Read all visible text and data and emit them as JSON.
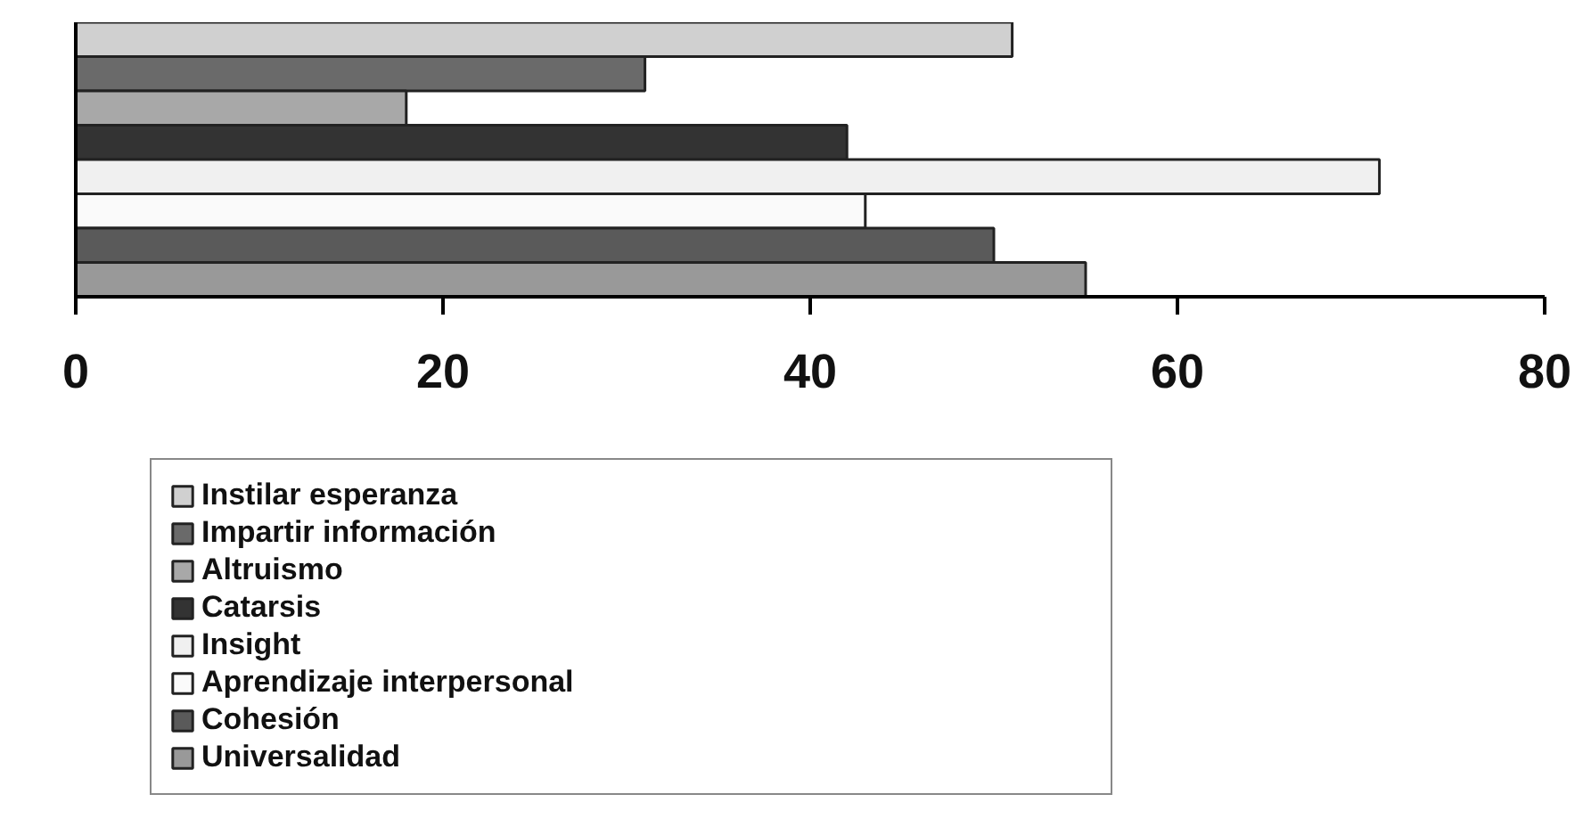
{
  "chart_data": {
    "type": "bar",
    "orientation": "horizontal",
    "categories": [
      null
    ],
    "series": [
      {
        "name": "Instilar esperanza",
        "color": "#d0d0d0",
        "values": [
          51
        ]
      },
      {
        "name": "Impartir información",
        "color": "#6a6a6a",
        "values": [
          31
        ]
      },
      {
        "name": "Altruismo",
        "color": "#a8a8a8",
        "values": [
          18
        ]
      },
      {
        "name": "Catarsis",
        "color": "#333333",
        "values": [
          42
        ]
      },
      {
        "name": "Insight",
        "color": "#f0f0f0",
        "values": [
          71
        ]
      },
      {
        "name": "Aprendizaje interpersonal",
        "color": "#fafafa",
        "values": [
          43
        ]
      },
      {
        "name": "Cohesión",
        "color": "#5a5a5a",
        "values": [
          50
        ]
      },
      {
        "name": "Universalidad",
        "color": "#999999",
        "values": [
          55
        ]
      }
    ],
    "xlim": [
      0,
      80
    ],
    "xticks": [
      0,
      20,
      40,
      60,
      80
    ],
    "grid": false,
    "legend": "bottom",
    "tick_labels": "x"
  }
}
